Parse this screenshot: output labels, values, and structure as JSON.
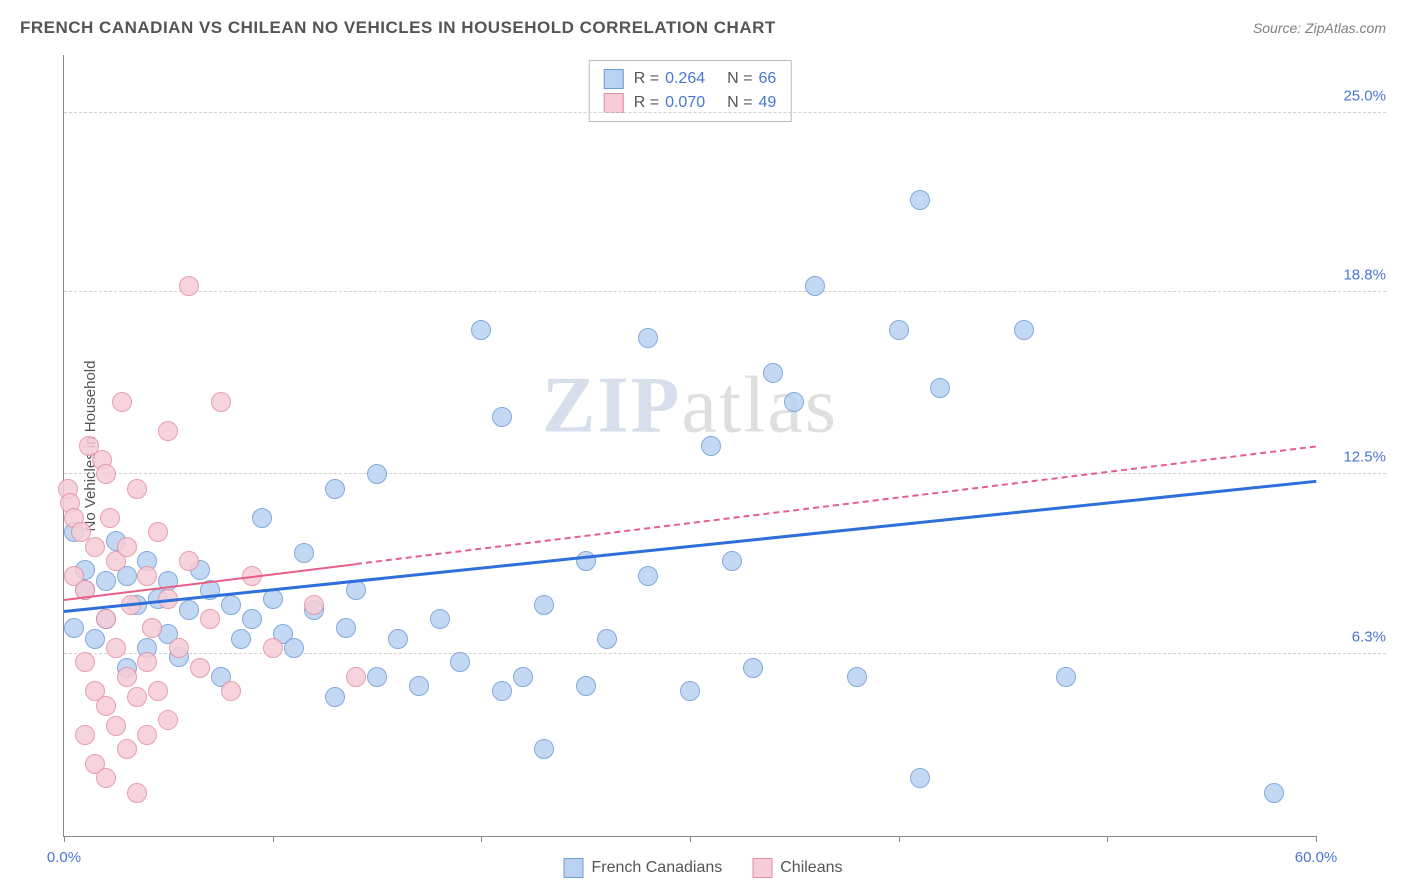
{
  "title": "FRENCH CANADIAN VS CHILEAN NO VEHICLES IN HOUSEHOLD CORRELATION CHART",
  "source": "Source: ZipAtlas.com",
  "y_axis_label": "No Vehicles in Household",
  "watermark": {
    "part1": "ZIP",
    "part2": "atlas"
  },
  "chart": {
    "type": "scatter",
    "xlim": [
      0,
      60
    ],
    "ylim": [
      0,
      27
    ],
    "x_ticks": [
      0,
      10,
      20,
      30,
      40,
      50,
      60
    ],
    "x_tick_labels": {
      "0": "0.0%",
      "60": "60.0%"
    },
    "x_tick_label_color": "#4876d6",
    "y_gridlines": [
      6.3,
      12.5,
      18.8,
      25.0
    ],
    "y_tick_labels": [
      "6.3%",
      "12.5%",
      "18.8%",
      "25.0%"
    ],
    "y_tick_label_color": "#4876d6",
    "grid_color": "#d0d0d0",
    "axis_color": "#888888",
    "background_color": "#ffffff",
    "marker_radius": 10,
    "marker_stroke_width": 1
  },
  "series": [
    {
      "name": "French Canadians",
      "fill": "#b9d2f0",
      "stroke": "#6f9bd8",
      "R": "0.264",
      "N": "66",
      "trend": {
        "x1": 0,
        "y1": 7.8,
        "x2": 60,
        "y2": 12.3,
        "color": "#2e6fd9",
        "width": 3,
        "dashed": false
      },
      "points": [
        [
          0.5,
          10.5
        ],
        [
          0.5,
          7.2
        ],
        [
          1,
          8.5
        ],
        [
          1,
          9.2
        ],
        [
          1.5,
          6.8
        ],
        [
          2,
          8.8
        ],
        [
          2,
          7.5
        ],
        [
          2.5,
          10.2
        ],
        [
          3,
          9.0
        ],
        [
          3,
          5.8
        ],
        [
          3.5,
          8.0
        ],
        [
          4,
          6.5
        ],
        [
          4,
          9.5
        ],
        [
          4.5,
          8.2
        ],
        [
          5,
          7.0
        ],
        [
          5,
          8.8
        ],
        [
          5.5,
          6.2
        ],
        [
          6,
          7.8
        ],
        [
          6.5,
          9.2
        ],
        [
          7,
          8.5
        ],
        [
          7.5,
          5.5
        ],
        [
          8,
          8.0
        ],
        [
          8.5,
          6.8
        ],
        [
          9,
          7.5
        ],
        [
          9.5,
          11.0
        ],
        [
          10,
          8.2
        ],
        [
          10.5,
          7.0
        ],
        [
          11,
          6.5
        ],
        [
          11.5,
          9.8
        ],
        [
          12,
          7.8
        ],
        [
          13,
          12.0
        ],
        [
          13,
          4.8
        ],
        [
          13.5,
          7.2
        ],
        [
          14,
          8.5
        ],
        [
          15,
          5.5
        ],
        [
          15,
          12.5
        ],
        [
          16,
          6.8
        ],
        [
          17,
          5.2
        ],
        [
          18,
          7.5
        ],
        [
          19,
          6.0
        ],
        [
          20,
          17.5
        ],
        [
          21,
          14.5
        ],
        [
          21,
          5.0
        ],
        [
          22,
          5.5
        ],
        [
          23,
          3.0
        ],
        [
          23,
          8.0
        ],
        [
          25,
          5.2
        ],
        [
          25,
          9.5
        ],
        [
          26,
          6.8
        ],
        [
          28,
          17.2
        ],
        [
          28,
          9.0
        ],
        [
          30,
          5.0
        ],
        [
          31,
          13.5
        ],
        [
          32,
          9.5
        ],
        [
          33,
          5.8
        ],
        [
          34,
          16.0
        ],
        [
          35,
          15.0
        ],
        [
          36,
          19.0
        ],
        [
          38,
          5.5
        ],
        [
          40,
          17.5
        ],
        [
          41,
          22.0
        ],
        [
          41,
          2.0
        ],
        [
          42,
          15.5
        ],
        [
          46,
          17.5
        ],
        [
          48,
          5.5
        ],
        [
          58,
          1.5
        ]
      ]
    },
    {
      "name": "Chileans",
      "fill": "#f6cdd6",
      "stroke": "#e38fa3",
      "R": "0.070",
      "N": "49",
      "trend": {
        "x1": 0,
        "y1": 8.2,
        "x2": 60,
        "y2": 13.5,
        "color": "#e85f86",
        "width": 2.5,
        "dashed_from": 14
      },
      "points": [
        [
          0.2,
          12.0
        ],
        [
          0.3,
          11.5
        ],
        [
          0.5,
          11.0
        ],
        [
          0.5,
          9.0
        ],
        [
          0.8,
          10.5
        ],
        [
          1,
          8.5
        ],
        [
          1,
          6.0
        ],
        [
          1,
          3.5
        ],
        [
          1.2,
          13.5
        ],
        [
          1.5,
          10.0
        ],
        [
          1.5,
          5.0
        ],
        [
          1.5,
          2.5
        ],
        [
          1.8,
          13.0
        ],
        [
          2,
          12.5
        ],
        [
          2,
          7.5
        ],
        [
          2,
          4.5
        ],
        [
          2,
          2.0
        ],
        [
          2.2,
          11.0
        ],
        [
          2.5,
          9.5
        ],
        [
          2.5,
          6.5
        ],
        [
          2.5,
          3.8
        ],
        [
          2.8,
          15.0
        ],
        [
          3,
          10.0
        ],
        [
          3,
          5.5
        ],
        [
          3,
          3.0
        ],
        [
          3.2,
          8.0
        ],
        [
          3.5,
          12.0
        ],
        [
          3.5,
          4.8
        ],
        [
          3.5,
          1.5
        ],
        [
          4,
          9.0
        ],
        [
          4,
          6.0
        ],
        [
          4,
          3.5
        ],
        [
          4.2,
          7.2
        ],
        [
          4.5,
          10.5
        ],
        [
          4.5,
          5.0
        ],
        [
          5,
          14.0
        ],
        [
          5,
          8.2
        ],
        [
          5,
          4.0
        ],
        [
          5.5,
          6.5
        ],
        [
          6,
          19.0
        ],
        [
          6,
          9.5
        ],
        [
          6.5,
          5.8
        ],
        [
          7,
          7.5
        ],
        [
          7.5,
          15.0
        ],
        [
          8,
          5.0
        ],
        [
          9,
          9.0
        ],
        [
          10,
          6.5
        ],
        [
          12,
          8.0
        ],
        [
          14,
          5.5
        ]
      ]
    }
  ],
  "stats_box": {
    "r_label": "R =",
    "n_label": "N =",
    "value_color": "#4876d6",
    "key_color": "#555555"
  },
  "bottom_legend": {
    "items": [
      "French Canadians",
      "Chileans"
    ]
  }
}
